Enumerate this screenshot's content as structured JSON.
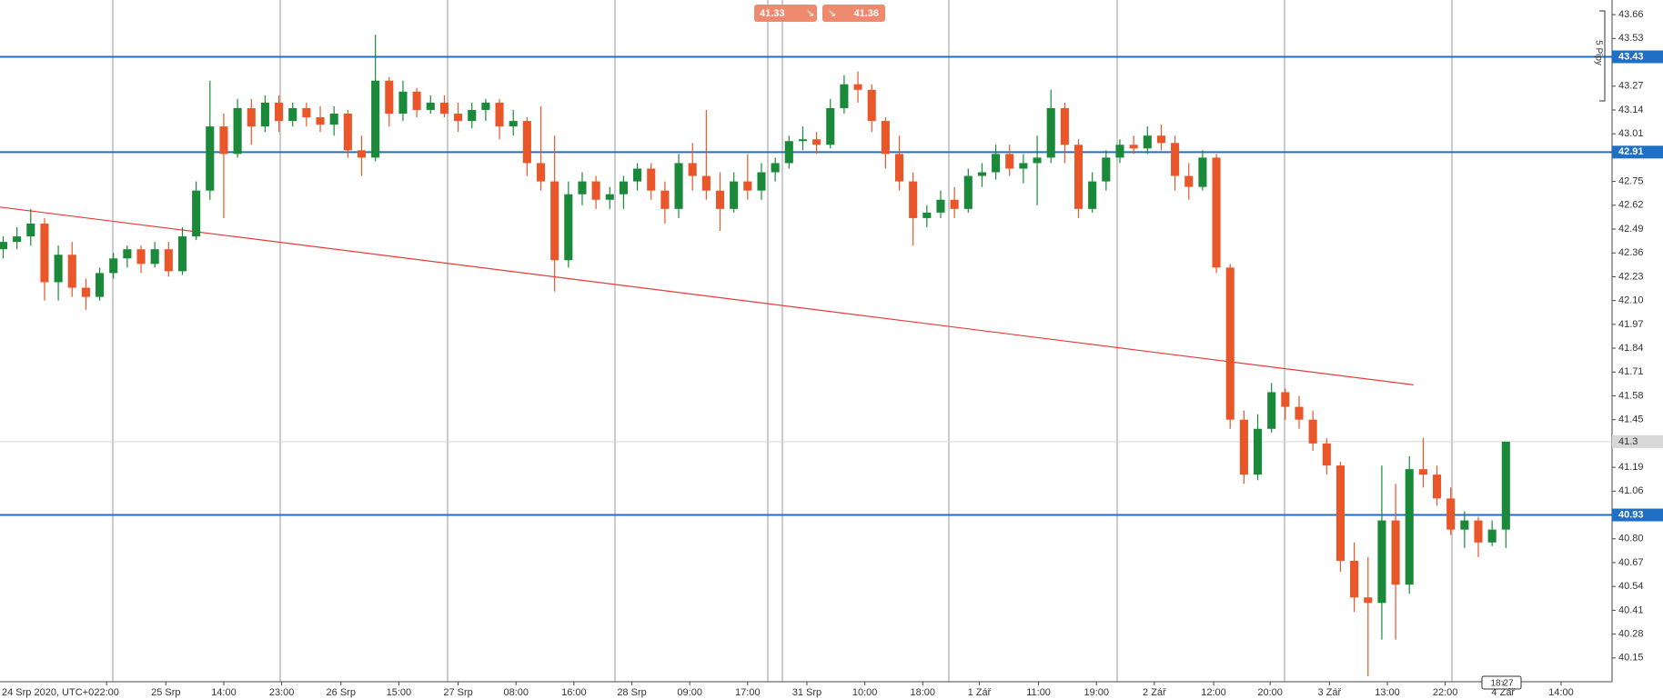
{
  "chart_data": {
    "type": "candlestick",
    "x_start_label": "24 Srp 2020, UTC+0",
    "xlim": [
      -0.23,
      116.7
    ],
    "xticks": [
      {
        "value": 7.5,
        "label": "22:00"
      },
      {
        "value": 11.8,
        "label": "25 Srp"
      },
      {
        "value": 16,
        "label": "14:00"
      },
      {
        "value": 20.2,
        "label": "23:00"
      },
      {
        "value": 24.5,
        "label": "26 Srp"
      },
      {
        "value": 28.7,
        "label": "15:00"
      },
      {
        "value": 33,
        "label": "27 Srp"
      },
      {
        "value": 37.2,
        "label": "08:00"
      },
      {
        "value": 41.4,
        "label": "16:00"
      },
      {
        "value": 45.6,
        "label": "28 Srp"
      },
      {
        "value": 49.8,
        "label": "09:00"
      },
      {
        "value": 54,
        "label": "17:00"
      },
      {
        "value": 58.3,
        "label": "31 Srp"
      },
      {
        "value": 62.5,
        "label": "10:00"
      },
      {
        "value": 66.7,
        "label": "18:00"
      },
      {
        "value": 70.8,
        "label": "1 Zář"
      },
      {
        "value": 75.1,
        "label": "11:00"
      },
      {
        "value": 79.3,
        "label": "19:00"
      },
      {
        "value": 83.5,
        "label": "2 Zář"
      },
      {
        "value": 87.8,
        "label": "12:00"
      },
      {
        "value": 91.9,
        "label": "20:00"
      },
      {
        "value": 96.2,
        "label": "3 Zář"
      },
      {
        "value": 100.4,
        "label": "13:00"
      },
      {
        "value": 104.6,
        "label": "22:00"
      },
      {
        "value": 108.8,
        "label": "4 Zář"
      },
      {
        "value": 113,
        "label": "14:00"
      }
    ],
    "ylim": [
      40.02,
      43.74
    ],
    "yticks": [
      43.66,
      43.53,
      43.27,
      43.14,
      43.01,
      42.75,
      42.62,
      42.49,
      42.36,
      42.23,
      {
        "value": 42.1,
        "label": "42.10"
      },
      41.97,
      41.84,
      41.71,
      41.58,
      41.45,
      41.19,
      41.06,
      {
        "value": 40.8,
        "label": "40.80"
      },
      40.67,
      40.54,
      40.41,
      40.28,
      40.15
    ],
    "up_color": "#1a8a3a",
    "down_color": "#e8562a",
    "open": [
      42.38,
      42.42,
      42.45,
      42.52,
      42.2,
      42.35,
      42.17,
      42.12,
      42.25,
      42.33,
      42.38,
      42.3,
      42.38,
      42.26,
      42.45,
      42.7,
      43.05,
      42.9,
      43.15,
      43.05,
      43.18,
      43.08,
      43.15,
      43.1,
      43.06,
      43.12,
      42.92,
      42.88,
      43.3,
      43.12,
      43.24,
      43.14,
      43.18,
      43.12,
      43.08,
      43.14,
      43.18,
      43.05,
      43.08,
      42.85,
      42.75,
      42.32,
      42.68,
      42.75,
      42.65,
      42.68,
      42.75,
      42.82,
      42.7,
      42.6,
      42.85,
      42.78,
      42.7,
      42.6,
      42.75,
      42.7,
      42.8,
      42.85,
      42.97,
      42.98,
      42.95,
      43.15,
      43.28,
      43.25,
      43.08,
      42.9,
      42.75,
      42.55,
      42.58,
      42.65,
      42.6,
      42.78,
      42.8,
      42.9,
      42.82,
      42.85,
      42.88,
      43.15,
      42.95,
      42.6,
      42.75,
      42.88,
      42.95,
      42.93,
      43.0,
      42.96,
      42.78,
      42.72,
      42.88,
      42.28,
      41.45,
      41.15,
      41.4,
      41.6,
      41.52,
      41.45,
      41.32,
      41.2,
      40.68,
      40.48,
      40.45,
      40.9,
      40.55,
      41.18,
      41.15,
      41.02,
      40.85,
      40.9,
      40.78,
      40.85
    ],
    "high": [
      42.45,
      42.5,
      42.6,
      42.55,
      42.4,
      42.42,
      42.22,
      42.28,
      42.36,
      42.4,
      42.4,
      42.42,
      42.42,
      42.5,
      42.75,
      43.3,
      43.12,
      43.2,
      43.2,
      43.22,
      43.22,
      43.18,
      43.18,
      43.16,
      43.16,
      43.14,
      43.0,
      43.55,
      43.32,
      43.3,
      43.26,
      43.22,
      43.22,
      43.18,
      43.18,
      43.2,
      43.2,
      43.14,
      43.1,
      43.16,
      43.0,
      42.75,
      42.8,
      42.78,
      42.72,
      42.78,
      42.85,
      42.85,
      42.75,
      42.9,
      42.96,
      43.14,
      42.8,
      42.8,
      42.9,
      42.85,
      42.88,
      43.0,
      43.05,
      43.02,
      43.2,
      43.33,
      43.35,
      43.28,
      43.1,
      43.0,
      42.8,
      42.62,
      42.7,
      42.72,
      42.82,
      42.85,
      42.95,
      42.95,
      42.9,
      43.0,
      43.25,
      43.18,
      42.98,
      42.8,
      42.92,
      42.98,
      43.0,
      43.05,
      43.06,
      43.0,
      42.85,
      42.92,
      42.9,
      42.3,
      41.5,
      41.48,
      41.65,
      41.62,
      41.58,
      41.5,
      41.35,
      41.22,
      40.78,
      40.7,
      41.2,
      41.1,
      41.25,
      41.35,
      41.2,
      41.08,
      40.95,
      40.92,
      40.9,
      41.33
    ],
    "low": [
      42.33,
      42.38,
      42.4,
      42.1,
      42.1,
      42.12,
      42.05,
      42.1,
      42.22,
      42.28,
      42.25,
      42.28,
      42.23,
      42.24,
      42.43,
      42.65,
      42.55,
      42.88,
      42.95,
      43.02,
      43.02,
      43.05,
      43.05,
      43.02,
      43.0,
      42.88,
      42.78,
      42.86,
      43.05,
      43.08,
      43.1,
      43.12,
      43.1,
      43.02,
      43.04,
      43.08,
      42.98,
      43.0,
      42.78,
      42.7,
      42.15,
      42.28,
      42.62,
      42.6,
      42.6,
      42.6,
      42.7,
      42.65,
      42.52,
      42.55,
      42.7,
      42.65,
      42.48,
      42.58,
      42.65,
      42.65,
      42.75,
      42.82,
      42.92,
      42.9,
      42.93,
      43.12,
      43.18,
      43.02,
      42.82,
      42.7,
      42.4,
      42.5,
      42.55,
      42.55,
      42.58,
      42.72,
      42.76,
      42.78,
      42.74,
      42.62,
      42.85,
      42.85,
      42.55,
      42.58,
      42.7,
      42.85,
      42.9,
      42.9,
      42.92,
      42.7,
      42.65,
      42.7,
      42.25,
      41.4,
      41.1,
      41.12,
      41.38,
      41.45,
      41.4,
      41.28,
      41.15,
      40.62,
      40.4,
      40.05,
      40.25,
      40.25,
      40.5,
      41.08,
      40.98,
      40.82,
      40.75,
      40.7,
      40.76,
      40.75
    ],
    "close": [
      42.42,
      42.45,
      42.52,
      42.2,
      42.35,
      42.17,
      42.12,
      42.25,
      42.33,
      42.38,
      42.3,
      42.38,
      42.26,
      42.45,
      42.7,
      43.05,
      42.9,
      43.15,
      43.05,
      43.18,
      43.08,
      43.15,
      43.1,
      43.06,
      43.12,
      42.92,
      42.88,
      43.3,
      43.12,
      43.24,
      43.14,
      43.18,
      43.12,
      43.08,
      43.14,
      43.18,
      43.05,
      43.08,
      42.85,
      42.75,
      42.32,
      42.68,
      42.75,
      42.65,
      42.68,
      42.75,
      42.82,
      42.7,
      42.6,
      42.85,
      42.78,
      42.7,
      42.6,
      42.75,
      42.7,
      42.8,
      42.85,
      42.97,
      42.98,
      42.95,
      43.15,
      43.28,
      43.25,
      43.08,
      42.9,
      42.75,
      42.55,
      42.58,
      42.65,
      42.6,
      42.78,
      42.8,
      42.9,
      42.82,
      42.85,
      42.88,
      43.15,
      42.95,
      42.6,
      42.75,
      42.88,
      42.95,
      42.93,
      43.0,
      42.96,
      42.78,
      42.72,
      42.88,
      42.28,
      41.45,
      41.15,
      41.4,
      41.6,
      41.52,
      41.45,
      41.32,
      41.2,
      40.68,
      40.48,
      40.45,
      40.9,
      40.55,
      41.18,
      41.15,
      41.02,
      40.85,
      40.9,
      40.78,
      40.85,
      41.33
    ],
    "levels": [
      {
        "value": 43.43,
        "color": "#1f6fc4"
      },
      {
        "value": 42.91,
        "color": "#1f6fc4"
      },
      {
        "value": 40.93,
        "color": "#1f6fc4"
      }
    ],
    "current": {
      "value": 41.33,
      "label": "41.3",
      "color": "#d8d8d8"
    },
    "trendline": {
      "x": [
        -0.23,
        102.3
      ],
      "y": [
        42.61,
        41.64
      ],
      "color": "#e83a3a"
    }
  },
  "quote": {
    "sell": 41.33,
    "buy": 41.36
  },
  "pip_label": "5 Pipy",
  "clock": "18:27"
}
